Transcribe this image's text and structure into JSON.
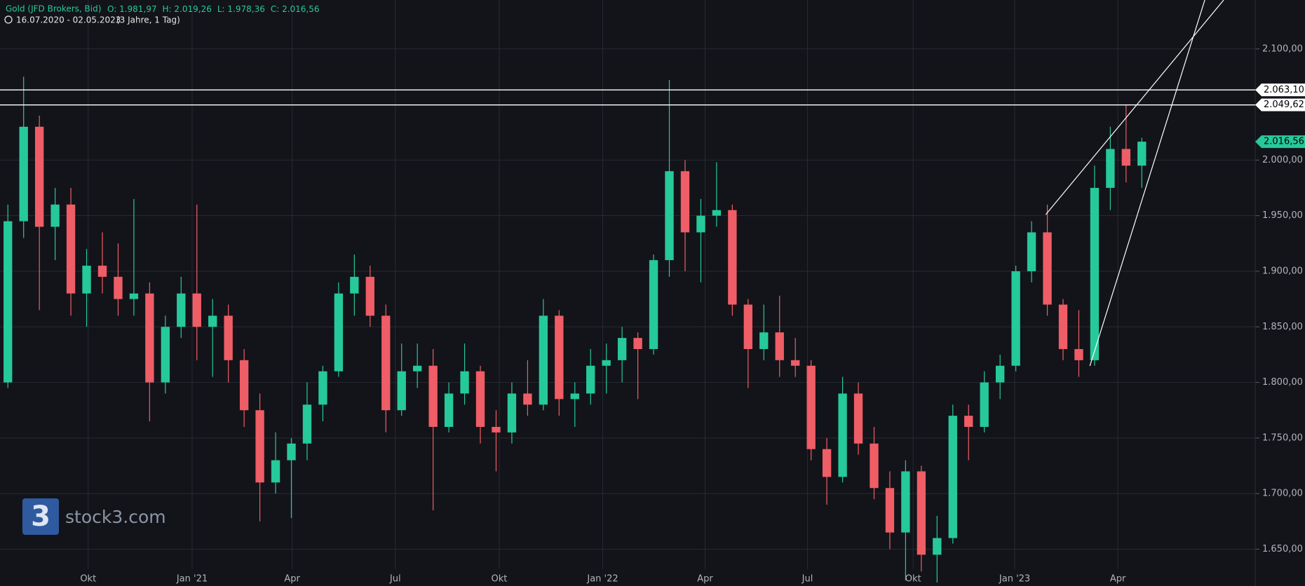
{
  "chart_data": {
    "type": "candlestick",
    "title": "Gold (JFD Brokers, Bid)",
    "header_values": [
      "O: 1.981,97",
      "H: 2.019,26",
      "L: 1.978,36",
      "C: 2.016,56"
    ],
    "subtitle": "16.07.2020 - 02.05.2023",
    "subtitle_note": "(3 Jahre, 1 Tag)",
    "watermark": "stock3.com",
    "logo": "3",
    "up_color": "#26c99a",
    "down_color": "#ef5d66",
    "open": [
      1800,
      1945,
      2030,
      1940,
      1960,
      1880,
      1905,
      1895,
      1875,
      1880,
      1800,
      1850,
      1880,
      1850,
      1860,
      1820,
      1775,
      1710,
      1730,
      1745,
      1780,
      1810,
      1880,
      1895,
      1860,
      1775,
      1810,
      1815,
      1760,
      1790,
      1810,
      1760,
      1755,
      1790,
      1780,
      1860,
      1785,
      1790,
      1815,
      1820,
      1840,
      1830,
      1910,
      1990,
      1935,
      1950,
      1955,
      1870,
      1830,
      1845,
      1820,
      1815,
      1740,
      1715,
      1790,
      1745,
      1705,
      1665,
      1720,
      1645,
      1660,
      1770,
      1760,
      1800,
      1815,
      1900,
      1935,
      1870,
      1830,
      1820,
      1975,
      2010,
      1995
    ],
    "high": [
      1960,
      2075,
      2040,
      1975,
      1975,
      1920,
      1935,
      1925,
      1965,
      1890,
      1860,
      1895,
      1960,
      1875,
      1870,
      1830,
      1790,
      1755,
      1750,
      1800,
      1815,
      1890,
      1915,
      1905,
      1870,
      1835,
      1835,
      1830,
      1800,
      1835,
      1815,
      1775,
      1800,
      1820,
      1875,
      1865,
      1800,
      1830,
      1835,
      1850,
      1845,
      1915,
      2072,
      2000,
      1965,
      1998,
      1960,
      1875,
      1870,
      1878,
      1840,
      1820,
      1750,
      1805,
      1800,
      1760,
      1720,
      1730,
      1725,
      1680,
      1780,
      1780,
      1810,
      1825,
      1905,
      1945,
      1960,
      1875,
      1865,
      1995,
      2030,
      2050,
      2020
    ],
    "low": [
      1795,
      1930,
      1865,
      1910,
      1860,
      1850,
      1880,
      1860,
      1860,
      1765,
      1790,
      1840,
      1820,
      1805,
      1800,
      1760,
      1675,
      1700,
      1678,
      1730,
      1765,
      1805,
      1860,
      1850,
      1755,
      1770,
      1795,
      1685,
      1755,
      1780,
      1745,
      1720,
      1745,
      1770,
      1775,
      1770,
      1760,
      1780,
      1790,
      1800,
      1785,
      1825,
      1895,
      1900,
      1890,
      1940,
      1860,
      1795,
      1820,
      1805,
      1805,
      1730,
      1690,
      1710,
      1735,
      1695,
      1650,
      1622,
      1630,
      1620,
      1655,
      1730,
      1755,
      1785,
      1810,
      1890,
      1860,
      1820,
      1805,
      1815,
      1955,
      1980,
      1975
    ],
    "close": [
      1945,
      2030,
      1940,
      1960,
      1880,
      1905,
      1895,
      1875,
      1880,
      1800,
      1850,
      1880,
      1850,
      1860,
      1820,
      1775,
      1710,
      1730,
      1745,
      1780,
      1810,
      1880,
      1895,
      1860,
      1775,
      1810,
      1815,
      1760,
      1790,
      1810,
      1760,
      1755,
      1790,
      1780,
      1860,
      1785,
      1790,
      1815,
      1820,
      1840,
      1830,
      1910,
      1990,
      1935,
      1950,
      1955,
      1870,
      1830,
      1845,
      1820,
      1815,
      1740,
      1715,
      1790,
      1745,
      1705,
      1665,
      1720,
      1645,
      1660,
      1770,
      1760,
      1800,
      1815,
      1900,
      1935,
      1870,
      1830,
      1820,
      1975,
      2010,
      1995,
      2016.56
    ],
    "last_price_label": "2.016,56",
    "xlim": [
      0,
      79.7
    ],
    "xticks": [
      {
        "value": 5.6,
        "label": "Okt"
      },
      {
        "value": 12.2,
        "label": "Jan '21"
      },
      {
        "value": 18.55,
        "label": "Apr"
      },
      {
        "value": 25.1,
        "label": "Jul"
      },
      {
        "value": 31.7,
        "label": "Okt"
      },
      {
        "value": 38.27,
        "label": "Jan '22"
      },
      {
        "value": 44.77,
        "label": "Apr"
      },
      {
        "value": 51.27,
        "label": "Jul"
      },
      {
        "value": 57.98,
        "label": "Okt"
      },
      {
        "value": 64.43,
        "label": "Jan '23"
      },
      {
        "value": 70.98,
        "label": "Apr"
      }
    ],
    "ylim": [
      1632,
      2144
    ],
    "yticks": [
      {
        "value": 1650,
        "label": "1.650,00"
      },
      {
        "value": 1700,
        "label": "1.700,00"
      },
      {
        "value": 1750,
        "label": "1.750,00"
      },
      {
        "value": 1800,
        "label": "1.800,00"
      },
      {
        "value": 1850,
        "label": "1.850,00"
      },
      {
        "value": 1900,
        "label": "1.900,00"
      },
      {
        "value": 1950,
        "label": "1.950,00"
      },
      {
        "value": 2000,
        "label": "2.000,00"
      },
      {
        "value": 2050,
        "label": "2.050,00"
      },
      {
        "value": 2100,
        "label": "2.100,00"
      }
    ],
    "grid": true,
    "hlines": [
      {
        "value": 2063.1,
        "label": "2.063,10"
      },
      {
        "value": 2049.62,
        "label": "2.049,62"
      }
    ],
    "trendlines": [
      {
        "x": [
          66.4,
          77.7
        ],
        "y": [
          1951,
          2144
        ]
      },
      {
        "x": [
          69.2,
          76.5
        ],
        "y": [
          1814.8,
          2144
        ]
      }
    ]
  }
}
